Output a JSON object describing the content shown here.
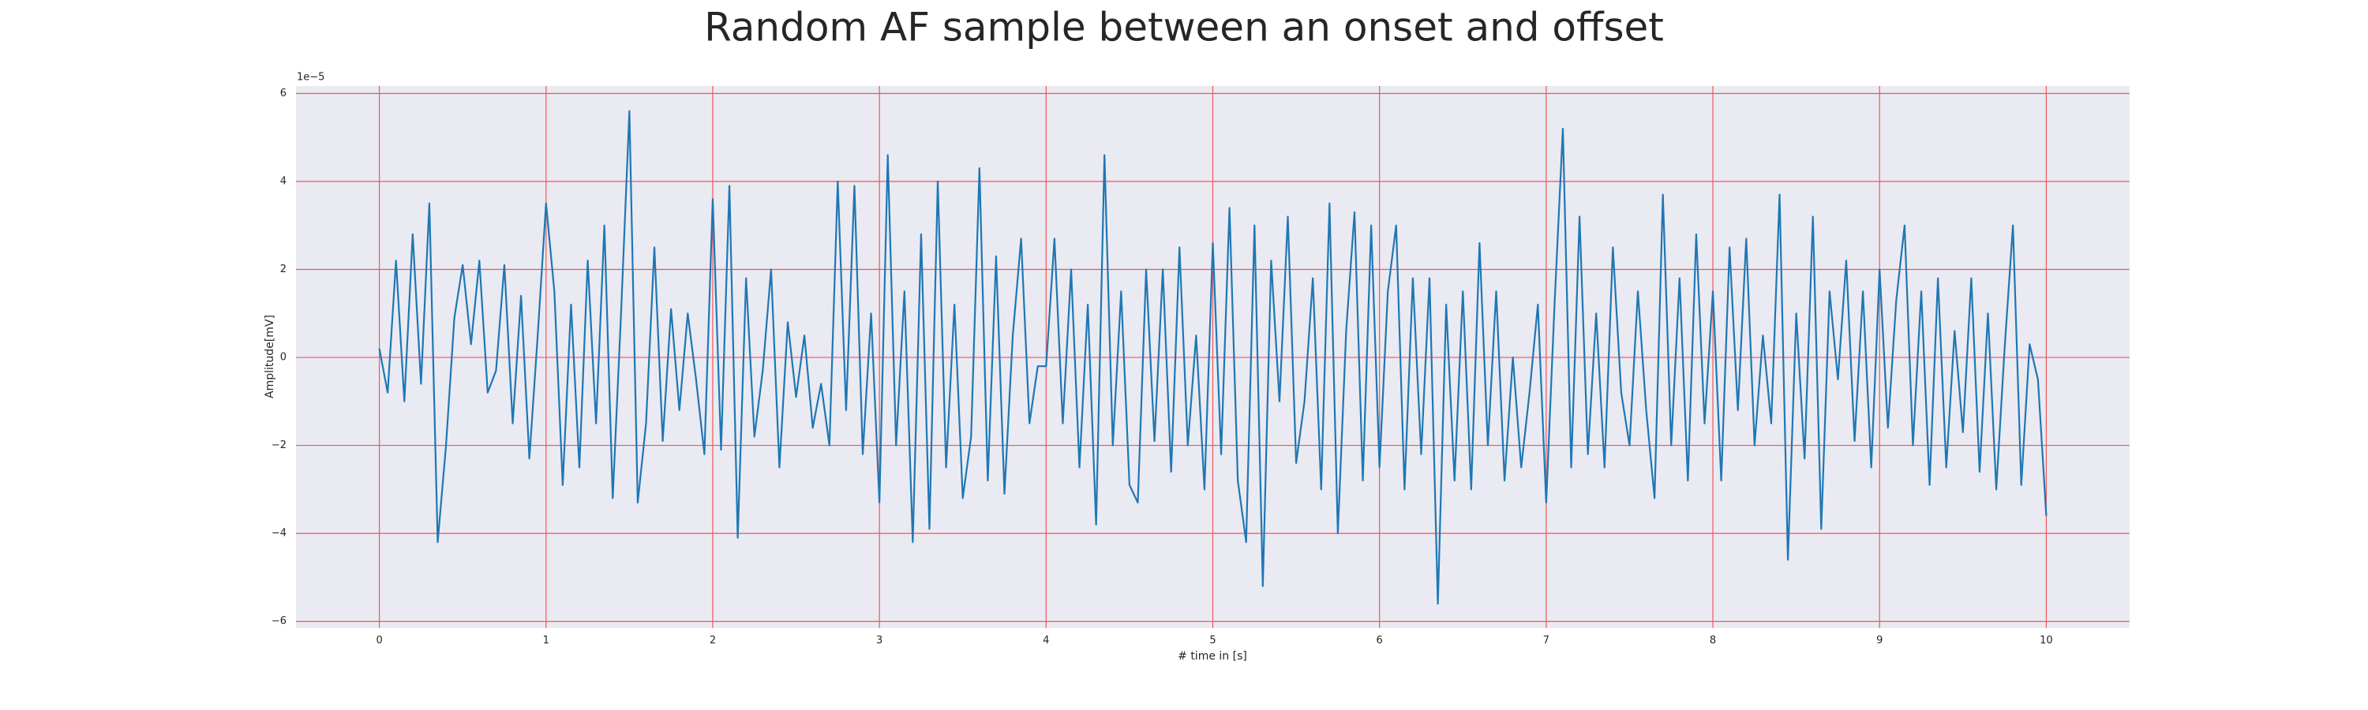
{
  "chart_data": {
    "type": "line",
    "title": "Random AF sample between an onset and offset",
    "xlabel": "# time in [s]",
    "ylabel": "Amplitude[mV]",
    "y_offset_label": "1e−5",
    "grid": true,
    "grid_color": "#f0565a",
    "background": "#eaeaf2",
    "xlim": [
      -0.5,
      10.5
    ],
    "ylim": [
      -6.15,
      6.17
    ],
    "xticks": [
      0,
      1,
      2,
      3,
      4,
      5,
      6,
      7,
      8,
      9,
      10
    ],
    "yticks": [
      {
        "value": -6,
        "label": "−6"
      },
      {
        "value": -4,
        "label": "−4"
      },
      {
        "value": -2,
        "label": "−2"
      },
      0,
      2,
      4,
      6
    ],
    "x": [
      0,
      0.05,
      0.1,
      0.15,
      0.2,
      0.25,
      0.3,
      0.35,
      0.4,
      0.45,
      0.5,
      0.55,
      0.6,
      0.65,
      0.7,
      0.75,
      0.8,
      0.85,
      0.9,
      0.95,
      1,
      1.05,
      1.1,
      1.15,
      1.2,
      1.25,
      1.3,
      1.35,
      1.4,
      1.45,
      1.5,
      1.55,
      1.6,
      1.65,
      1.7,
      1.75,
      1.8,
      1.85,
      1.9,
      1.95,
      2,
      2.05,
      2.1,
      2.15,
      2.2,
      2.25,
      2.3,
      2.35,
      2.4,
      2.45,
      2.5,
      2.55,
      2.6,
      2.65,
      2.7,
      2.75,
      2.8,
      2.85,
      2.9,
      2.95,
      3,
      3.05,
      3.1,
      3.15,
      3.2,
      3.25,
      3.3,
      3.35,
      3.4,
      3.45,
      3.5,
      3.55,
      3.6,
      3.65,
      3.7,
      3.75,
      3.8,
      3.85,
      3.9,
      3.95,
      4,
      4.05,
      4.1,
      4.15,
      4.2,
      4.25,
      4.3,
      4.35,
      4.4,
      4.45,
      4.5,
      4.55,
      4.6,
      4.65,
      4.7,
      4.75,
      4.8,
      4.85,
      4.9,
      4.95,
      5,
      5.05,
      5.1,
      5.15,
      5.2,
      5.25,
      5.3,
      5.35,
      5.4,
      5.45,
      5.5,
      5.55,
      5.6,
      5.65,
      5.7,
      5.75,
      5.8,
      5.85,
      5.9,
      5.95,
      6,
      6.05,
      6.1,
      6.15,
      6.2,
      6.25,
      6.3,
      6.35,
      6.4,
      6.45,
      6.5,
      6.55,
      6.6,
      6.65,
      6.7,
      6.75,
      6.8,
      6.85,
      6.9,
      6.95,
      7,
      7.05,
      7.1,
      7.15,
      7.2,
      7.25,
      7.3,
      7.35,
      7.4,
      7.45,
      7.5,
      7.55,
      7.6,
      7.65,
      7.7,
      7.75,
      7.8,
      7.85,
      7.9,
      7.95,
      8,
      8.05,
      8.1,
      8.15,
      8.2,
      8.25,
      8.3,
      8.35,
      8.4,
      8.45,
      8.5,
      8.55,
      8.6,
      8.65,
      8.7,
      8.75,
      8.8,
      8.85,
      8.9,
      8.95,
      9,
      9.05,
      9.1,
      9.15,
      9.2,
      9.25,
      9.3,
      9.35,
      9.4,
      9.45,
      9.5,
      9.55,
      9.6,
      9.65,
      9.7,
      9.75,
      9.8,
      9.85,
      9.9,
      9.95,
      10
    ],
    "series": [
      {
        "color": "#1f77b4",
        "values": [
          0.2,
          -0.8,
          2.2,
          -1.0,
          2.8,
          -0.6,
          3.5,
          -4.2,
          -2.0,
          0.9,
          2.1,
          0.3,
          2.2,
          -0.8,
          -0.3,
          2.1,
          -1.5,
          1.4,
          -2.3,
          0.5,
          3.5,
          1.5,
          -2.9,
          1.2,
          -2.5,
          2.2,
          -1.5,
          3.0,
          -3.2,
          1.0,
          5.6,
          -3.3,
          -1.5,
          2.5,
          -1.9,
          1.1,
          -1.2,
          1.0,
          -0.5,
          -2.2,
          3.6,
          -2.1,
          3.9,
          -4.1,
          1.8,
          -1.8,
          -0.3,
          2.0,
          -2.5,
          0.8,
          -0.9,
          0.5,
          -1.6,
          -0.6,
          -2.0,
          4.0,
          -1.2,
          3.9,
          -2.2,
          1.0,
          -3.3,
          4.6,
          -2.0,
          1.5,
          -4.2,
          2.8,
          -3.9,
          4.0,
          -2.5,
          1.2,
          -3.2,
          -1.8,
          4.3,
          -2.8,
          2.3,
          -3.1,
          0.5,
          2.7,
          -1.5,
          -0.2,
          -0.2,
          2.7,
          -1.5,
          2.0,
          -2.5,
          1.2,
          -3.8,
          4.6,
          -2.0,
          1.5,
          -2.9,
          -3.3,
          2.0,
          -1.9,
          2.0,
          -2.6,
          2.5,
          -2.0,
          0.5,
          -3.0,
          2.6,
          -2.2,
          3.4,
          -2.8,
          -4.2,
          3.0,
          -5.2,
          2.2,
          -1.0,
          3.2,
          -2.4,
          -1.0,
          1.8,
          -3.0,
          3.5,
          -4.0,
          0.6,
          3.3,
          -2.8,
          3.0,
          -2.5,
          1.5,
          3.0,
          -3.0,
          1.8,
          -2.2,
          1.8,
          -5.6,
          1.2,
          -2.8,
          1.5,
          -3.0,
          2.6,
          -2.0,
          1.5,
          -2.8,
          0.0,
          -2.5,
          -0.8,
          1.2,
          -3.3,
          1.2,
          5.2,
          -2.5,
          3.2,
          -2.2,
          1.0,
          -2.5,
          2.5,
          -0.8,
          -2.0,
          1.5,
          -1.2,
          -3.2,
          3.7,
          -2.0,
          1.8,
          -2.8,
          2.8,
          -1.5,
          1.5,
          -2.8,
          2.5,
          -1.2,
          2.7,
          -2.0,
          0.5,
          -1.5,
          3.7,
          -4.6,
          1.0,
          -2.3,
          3.2,
          -3.9,
          1.5,
          -0.5,
          2.2,
          -1.9,
          1.5,
          -2.5,
          2.0,
          -1.6,
          1.3,
          3.0,
          -2.0,
          1.5,
          -2.9,
          1.8,
          -2.5,
          0.6,
          -1.7,
          1.8,
          -2.6,
          1.0,
          -3.0,
          0.2,
          3.0,
          -2.9,
          0.3,
          -0.5,
          -3.6
        ]
      }
    ]
  }
}
